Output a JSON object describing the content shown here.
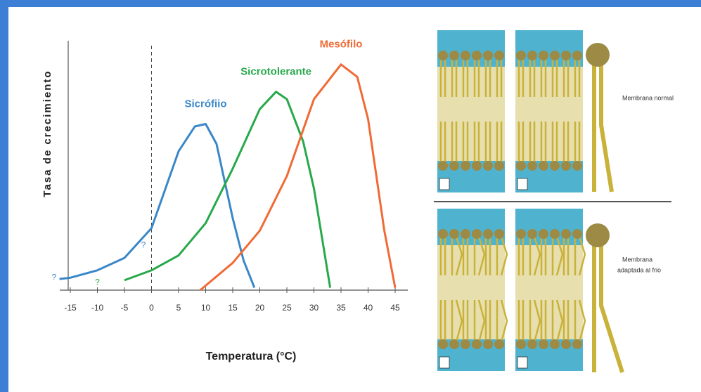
{
  "chart_data": {
    "type": "line",
    "x_label": "Temperatura (°C)",
    "y_label": "Tasa de crecimiento",
    "xlim": [
      -15,
      45
    ],
    "xticks": [
      -15,
      -10,
      -5,
      0,
      5,
      10,
      15,
      20,
      25,
      30,
      35,
      40,
      45
    ],
    "ylim": [
      0,
      100
    ],
    "reference_line_x": 0,
    "series": [
      {
        "name": "Sicrófiio",
        "color": "#3a87c8",
        "x": [
          -17,
          -15,
          -10,
          -5,
          0,
          5,
          8,
          10,
          12,
          15,
          17,
          19
        ],
        "values": [
          4.5,
          5,
          8,
          13,
          25,
          56,
          66,
          67,
          59,
          29,
          12,
          1
        ]
      },
      {
        "name": "Sicrotolerante",
        "color": "#27a84a",
        "x": [
          -5,
          0,
          5,
          10,
          15,
          20,
          23,
          25,
          28,
          30,
          33
        ],
        "values": [
          4,
          8,
          14,
          27,
          49,
          73,
          80,
          77,
          60,
          41,
          1
        ]
      },
      {
        "name": "Mesófilo",
        "color": "#f06a35",
        "x": [
          9,
          15,
          20,
          25,
          30,
          35,
          38,
          40,
          43,
          45
        ],
        "values": [
          0,
          11,
          24,
          46,
          77,
          91,
          86,
          69,
          24,
          1
        ]
      }
    ],
    "annotations": [
      {
        "text": "?",
        "x": -18,
        "y": 5,
        "color": "#3a87c8"
      },
      {
        "text": "?",
        "x": -10,
        "y": 3,
        "color": "#27a84a"
      },
      {
        "text": "?",
        "x": -1.5,
        "y": 18,
        "color": "#3a87c8"
      }
    ]
  },
  "diagram": {
    "labels": [
      "Membrana normal",
      "Membrana",
      "adaptada al frio"
    ]
  }
}
